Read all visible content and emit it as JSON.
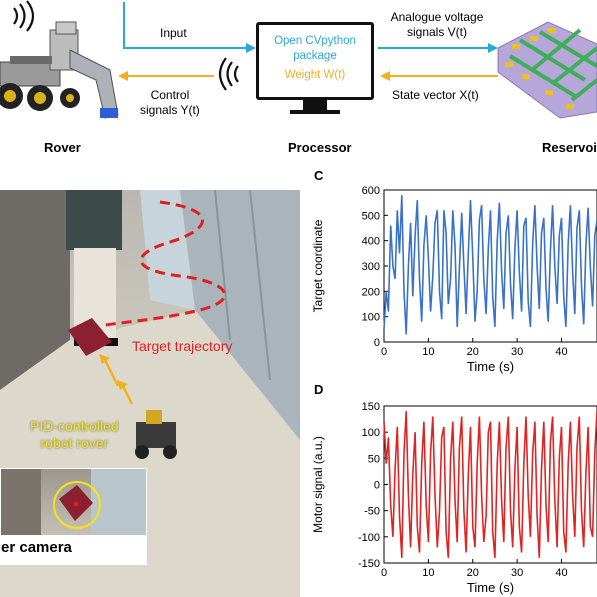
{
  "diagram": {
    "input_label": "Input",
    "control_label_line1": "Control",
    "control_label_line2": "signals Y(t)",
    "processor_line1": "Open CVpython",
    "processor_line2": "package",
    "processor_line3": "Weight W(t)",
    "analogue_line1": "Analogue voltage",
    "analogue_line2": "signals V(t)",
    "state_vector_label": "State vector X(t)",
    "rover_label": "Rover",
    "processor_label": "Processor",
    "reservoir_label": "Reservoi",
    "colors": {
      "blue_arrow": "#2aa7dc",
      "yellow_arrow": "#f2b01e",
      "processor_text": "#2aa7dc",
      "weight_text": "#f2b01e"
    }
  },
  "photo": {
    "target_trajectory_label": "Target trajectory",
    "pid_line1": "PID-controlled",
    "pid_line2": "robot rover",
    "camera_label": "er camera",
    "colors": {
      "trajectory": "#e02020",
      "pid_text": "#f5e21a",
      "arrow": "#f2b01e"
    }
  },
  "chart_data": [
    {
      "panel": "C",
      "type": "line",
      "xlabel": "Time (s)",
      "ylabel": "Target coordinate",
      "xlim": [
        0,
        48
      ],
      "ylim": [
        0,
        600
      ],
      "x_ticks": [
        0,
        10,
        20,
        30,
        40
      ],
      "y_ticks": [
        0,
        100,
        200,
        300,
        400,
        500,
        600
      ],
      "color": "#3a72c8",
      "series": [
        {
          "x": [
            0,
            0.5,
            1,
            1.5,
            2,
            2.5,
            3,
            3.5,
            4,
            4.5,
            5,
            5.5,
            6,
            6.5,
            7,
            7.5,
            8,
            8.5,
            9,
            9.5,
            10,
            10.5,
            11,
            11.5,
            12,
            12.5,
            13,
            13.5,
            14,
            14.5,
            15,
            15.5,
            16,
            16.5,
            17,
            17.5,
            18,
            18.5,
            19,
            19.5,
            20,
            20.5,
            21,
            21.5,
            22,
            22.5,
            23,
            23.5,
            24,
            24.5,
            25,
            25.5,
            26,
            26.5,
            27,
            27.5,
            28,
            28.5,
            29,
            29.5,
            30,
            30.5,
            31,
            31.5,
            32,
            32.5,
            33,
            33.5,
            34,
            34.5,
            35,
            35.5,
            36,
            36.5,
            37,
            37.5,
            38,
            38.5,
            39,
            39.5,
            40,
            40.5,
            41,
            41.5,
            42,
            42.5,
            43,
            43.5,
            44,
            44.5,
            45,
            45.5,
            46,
            46.5,
            47,
            47.5,
            48
          ],
          "values": [
            50,
            200,
            120,
            460,
            300,
            250,
            520,
            350,
            580,
            200,
            30,
            300,
            470,
            180,
            420,
            560,
            250,
            80,
            380,
            500,
            330,
            120,
            260,
            470,
            520,
            200,
            90,
            520,
            430,
            150,
            250,
            520,
            380,
            60,
            290,
            510,
            300,
            110,
            350,
            560,
            330,
            80,
            200,
            480,
            540,
            250,
            110,
            370,
            520,
            180,
            60,
            400,
            550,
            280,
            130,
            430,
            500,
            230,
            90,
            370,
            520,
            280,
            120,
            460,
            490,
            160,
            60,
            390,
            540,
            300,
            130,
            430,
            490,
            210,
            80,
            360,
            540,
            300,
            150,
            420,
            490,
            180,
            60,
            390,
            540,
            280,
            110,
            450,
            520,
            220,
            70,
            380,
            530,
            300,
            140,
            420,
            480
          ]
        }
      ]
    },
    {
      "panel": "D",
      "type": "line",
      "xlabel": "Time (s)",
      "ylabel": "Motor signal (a.u.)",
      "xlim": [
        0,
        48
      ],
      "ylim": [
        -150,
        150
      ],
      "x_ticks": [
        0,
        10,
        20,
        30,
        40
      ],
      "y_ticks": [
        150,
        100,
        50,
        0,
        -50,
        -100,
        -150
      ],
      "color": "#e02424",
      "series": [
        {
          "x": [
            0,
            0.5,
            1,
            1.5,
            2,
            2.5,
            3,
            3.5,
            4,
            4.5,
            5,
            5.5,
            6,
            6.5,
            7,
            7.5,
            8,
            8.5,
            9,
            9.5,
            10,
            10.5,
            11,
            11.5,
            12,
            12.5,
            13,
            13.5,
            14,
            14.5,
            15,
            15.5,
            16,
            16.5,
            17,
            17.5,
            18,
            18.5,
            19,
            19.5,
            20,
            20.5,
            21,
            21.5,
            22,
            22.5,
            23,
            23.5,
            24,
            24.5,
            25,
            25.5,
            26,
            26.5,
            27,
            27.5,
            28,
            28.5,
            29,
            29.5,
            30,
            30.5,
            31,
            31.5,
            32,
            32.5,
            33,
            33.5,
            34,
            34.5,
            35,
            35.5,
            36,
            36.5,
            37,
            37.5,
            38,
            38.5,
            39,
            39.5,
            40,
            40.5,
            41,
            41.5,
            42,
            42.5,
            43,
            43.5,
            44,
            44.5,
            45,
            45.5,
            46,
            46.5,
            47,
            47.5,
            48
          ],
          "values": [
            120,
            40,
            90,
            -40,
            -100,
            30,
            110,
            -60,
            -140,
            60,
            140,
            -20,
            -120,
            20,
            100,
            -80,
            -130,
            40,
            120,
            -40,
            -110,
            60,
            130,
            -20,
            -120,
            -50,
            90,
            110,
            -90,
            -140,
            50,
            120,
            -30,
            -110,
            70,
            130,
            -50,
            -130,
            20,
            110,
            -80,
            -120,
            40,
            130,
            -20,
            -110,
            -60,
            100,
            120,
            -90,
            -140,
            40,
            120,
            -30,
            -110,
            70,
            130,
            -50,
            -120,
            30,
            110,
            -80,
            -130,
            40,
            130,
            -20,
            -100,
            60,
            120,
            -60,
            -140,
            30,
            120,
            -40,
            -110,
            80,
            130,
            -30,
            -120,
            50,
            110,
            -90,
            -130,
            40,
            120,
            -20,
            -100,
            70,
            130,
            -50,
            -120,
            20,
            110,
            -80,
            -100,
            60,
            140
          ]
        }
      ]
    }
  ]
}
